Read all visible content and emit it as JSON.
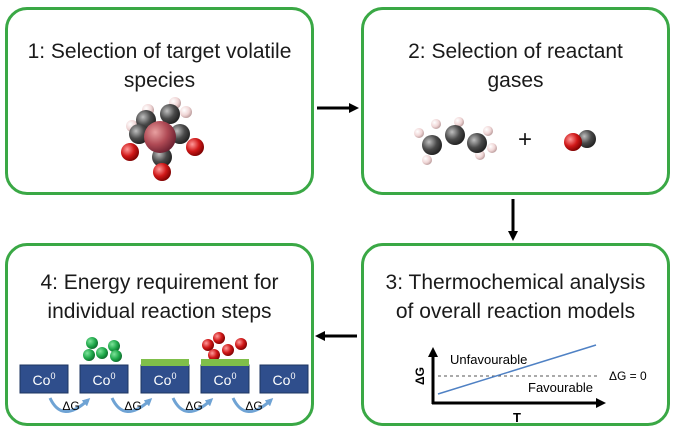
{
  "panels": [
    {
      "step": "1",
      "title_line1": "1: Selection of target volatile",
      "title_line2": "species"
    },
    {
      "step": "2",
      "title_line1": "2: Selection of reactant",
      "title_line2": "gases",
      "plus": "+"
    },
    {
      "step": "3",
      "title_line1": "3: Thermochemical analysis",
      "title_line2": "of overall reaction models"
    },
    {
      "step": "4",
      "title_line1": "4: Energy requirement for",
      "title_line2": "individual reaction steps"
    }
  ],
  "thermo_plot": {
    "y_label": "ΔG",
    "x_label": "T",
    "upper_region": "Unfavourable",
    "lower_region": "Favourable",
    "zero_line_label": "ΔG = 0"
  },
  "reaction_steps": {
    "block_label": "Co",
    "block_superscript": "0",
    "energy_label": "ΔG"
  },
  "colors": {
    "panel_border": "#3aa845",
    "arrow": "#000000",
    "cobalt_block": "#2f4e8c",
    "ligand_green": "#1fa84a",
    "oxygen_red": "#d01818",
    "carbon_grey": "#4a4a4a",
    "hydrogen_pink": "#f0d6d6",
    "curved_arrow_blue": "#6fa3d4",
    "delta_g_line": "#4f81c4"
  }
}
